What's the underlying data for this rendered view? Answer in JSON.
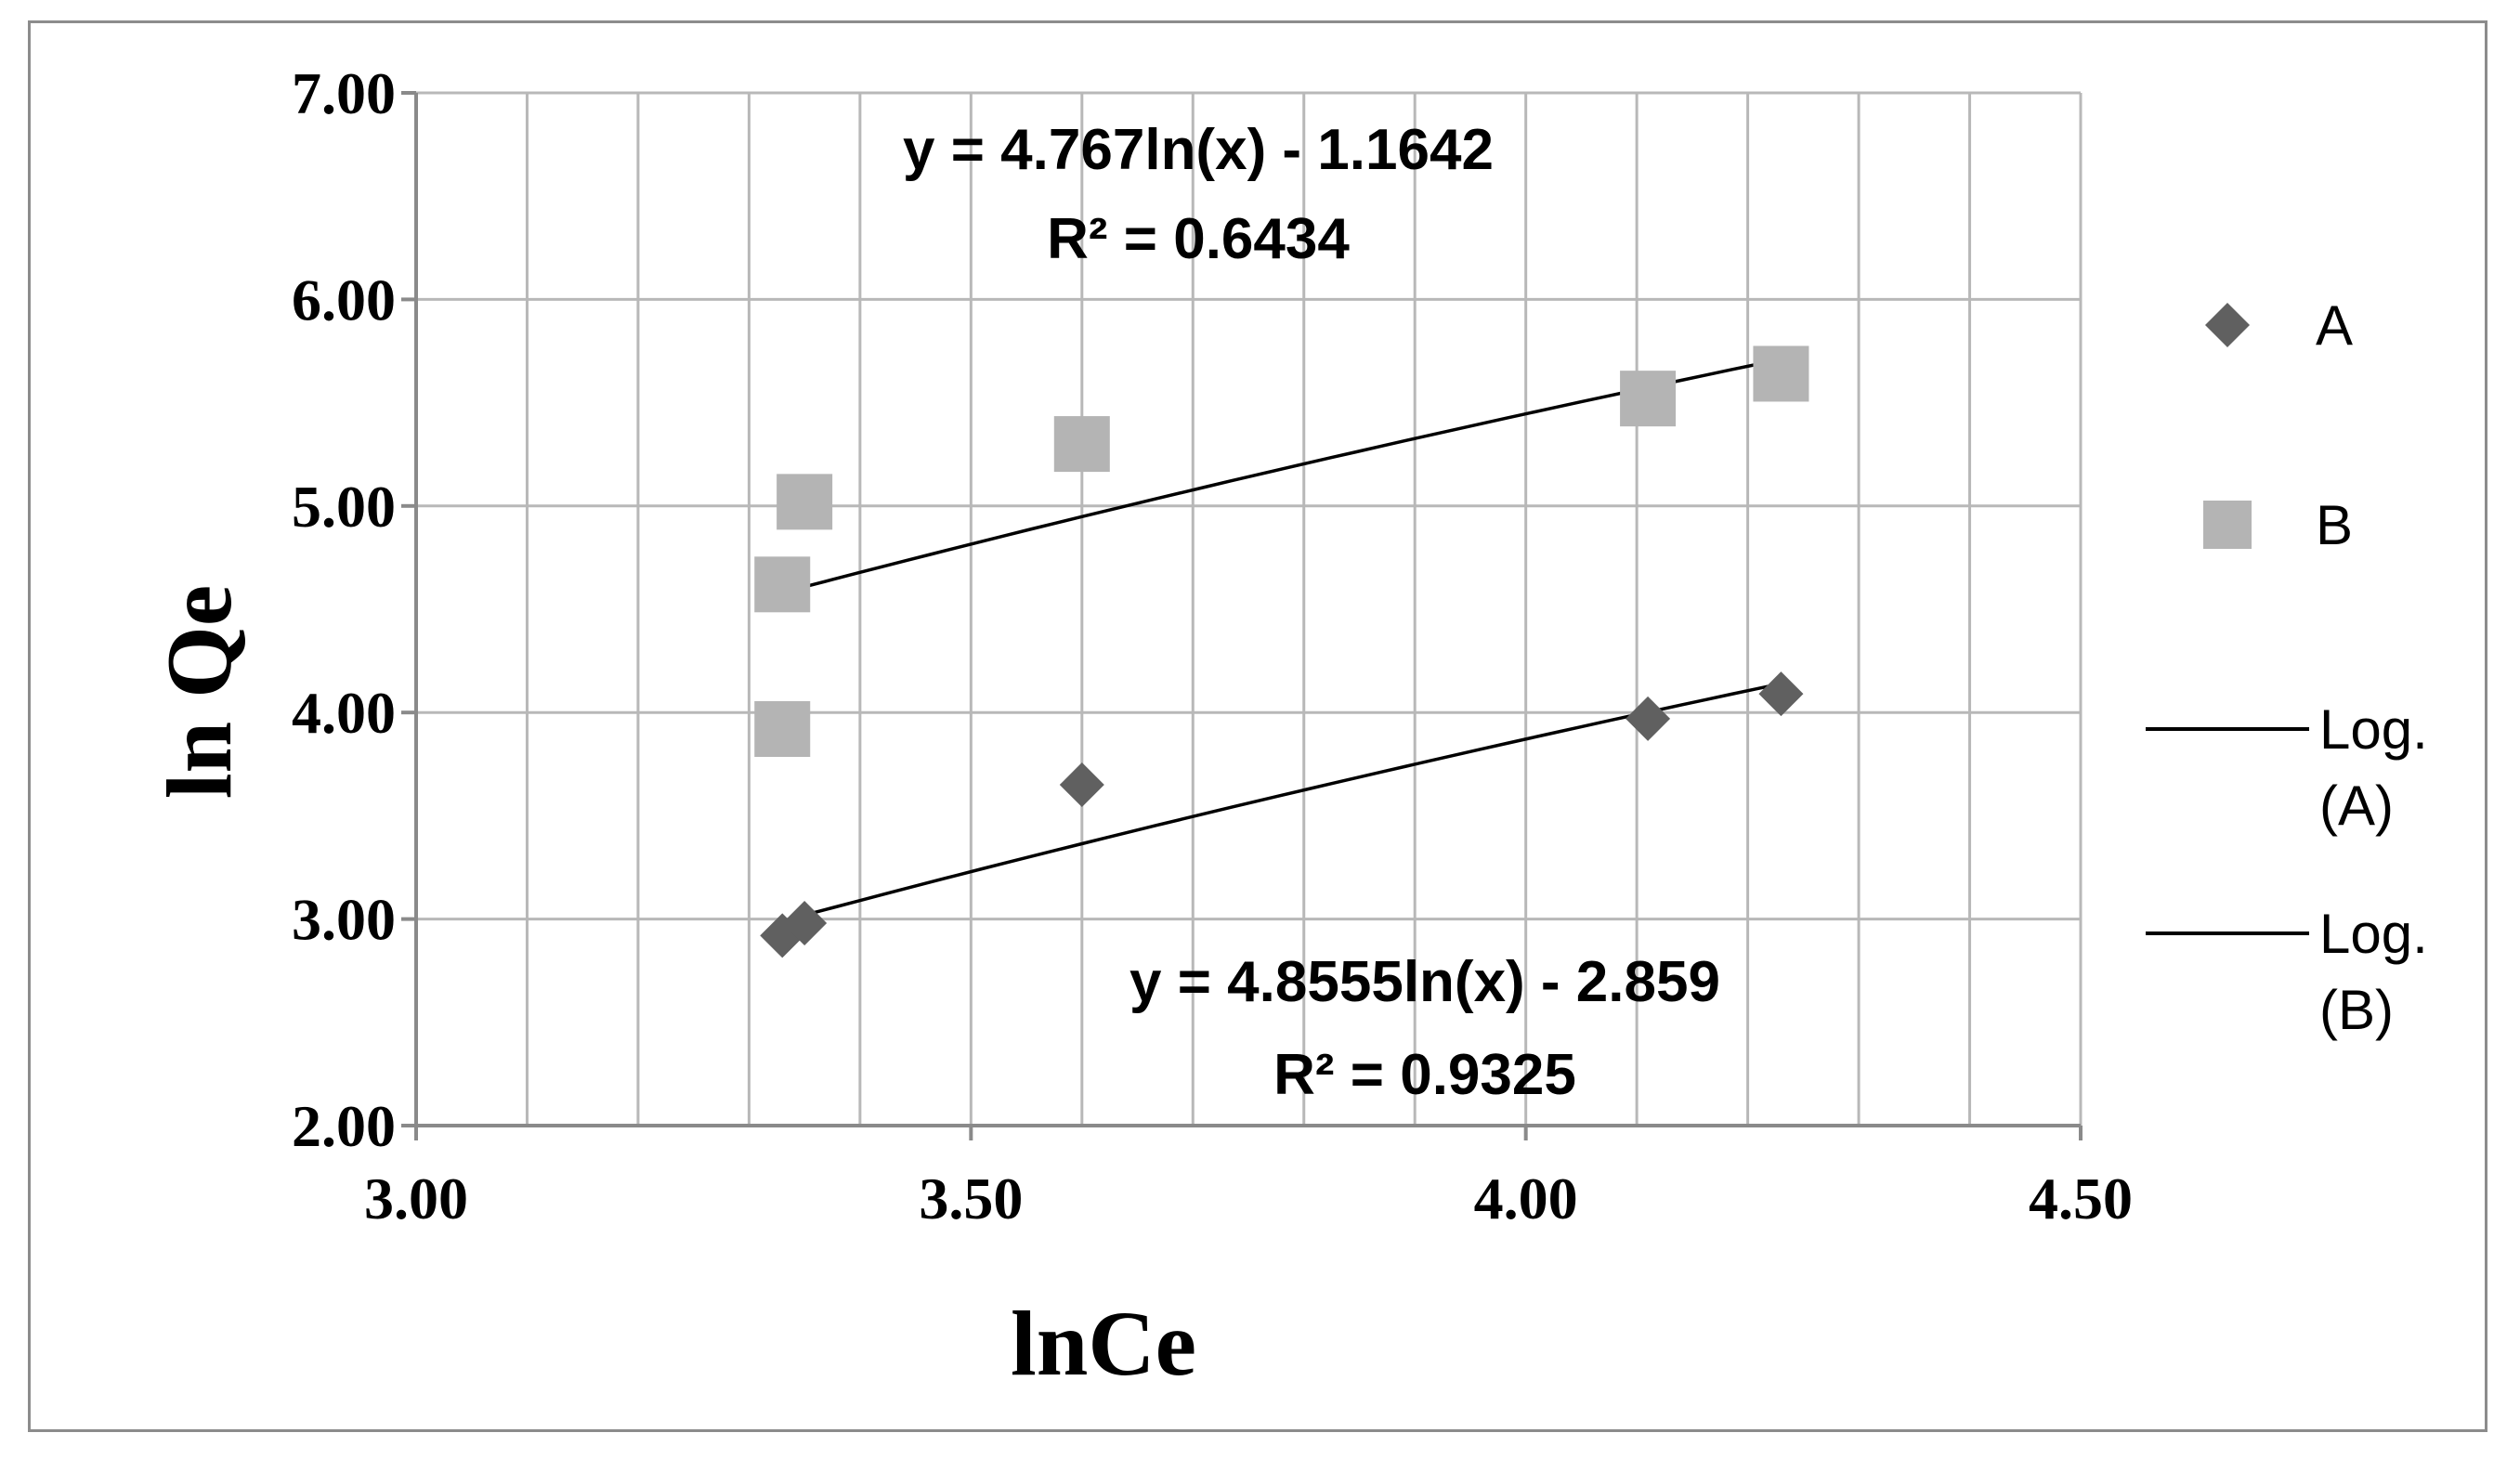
{
  "chart_data": {
    "type": "scatter",
    "xlabel": "lnCe",
    "ylabel": "ln Qe",
    "xlim": [
      3.0,
      4.5
    ],
    "ylim": [
      2.0,
      7.0
    ],
    "x_major_ticks": [
      "3.00",
      "3.50",
      "4.00",
      "4.50"
    ],
    "y_major_ticks": [
      "2.00",
      "3.00",
      "4.00",
      "5.00",
      "6.00",
      "7.00"
    ],
    "x_minor_step": 0.1,
    "y_minor_step": 1.0,
    "grid": true,
    "legend_position": "right",
    "series": [
      {
        "name": "A",
        "marker": "diamond",
        "color": "#606060",
        "x": [
          3.33,
          3.35,
          3.6,
          4.11,
          4.23
        ],
        "y": [
          2.92,
          2.98,
          3.65,
          3.97,
          4.09
        ]
      },
      {
        "name": "B",
        "marker": "square",
        "color": "#b4b4b4",
        "x": [
          3.33,
          3.33,
          3.35,
          3.6,
          4.11,
          4.23
        ],
        "y": [
          3.92,
          4.62,
          5.02,
          5.3,
          5.52,
          5.64
        ]
      }
    ],
    "trendlines": [
      {
        "name": "Log. (A)",
        "type": "logarithmic",
        "color": "#000000",
        "x_range": [
          3.33,
          4.23
        ],
        "y_range": [
          2.99,
          4.14
        ],
        "equation": "y = 4.8555ln(x) - 2.859",
        "r2": "R² = 0.9325"
      },
      {
        "name": "Log. (B)",
        "type": "logarithmic",
        "color": "#000000",
        "x_range": [
          3.33,
          4.23
        ],
        "y_range": [
          4.58,
          5.71
        ],
        "equation": "y = 4.767ln(x) - 1.1642",
        "r2": "R² = 0.6434"
      }
    ],
    "legend": {
      "items": [
        {
          "label_lines": [
            "A"
          ],
          "kind": "diamond",
          "color": "#606060"
        },
        {
          "label_lines": [
            "B"
          ],
          "kind": "square",
          "color": "#b4b4b4"
        },
        {
          "label_lines": [
            "Log.",
            "(A)"
          ],
          "kind": "line",
          "color": "#000000"
        },
        {
          "label_lines": [
            "Log.",
            "(B)"
          ],
          "kind": "line",
          "color": "#000000"
        }
      ]
    }
  }
}
